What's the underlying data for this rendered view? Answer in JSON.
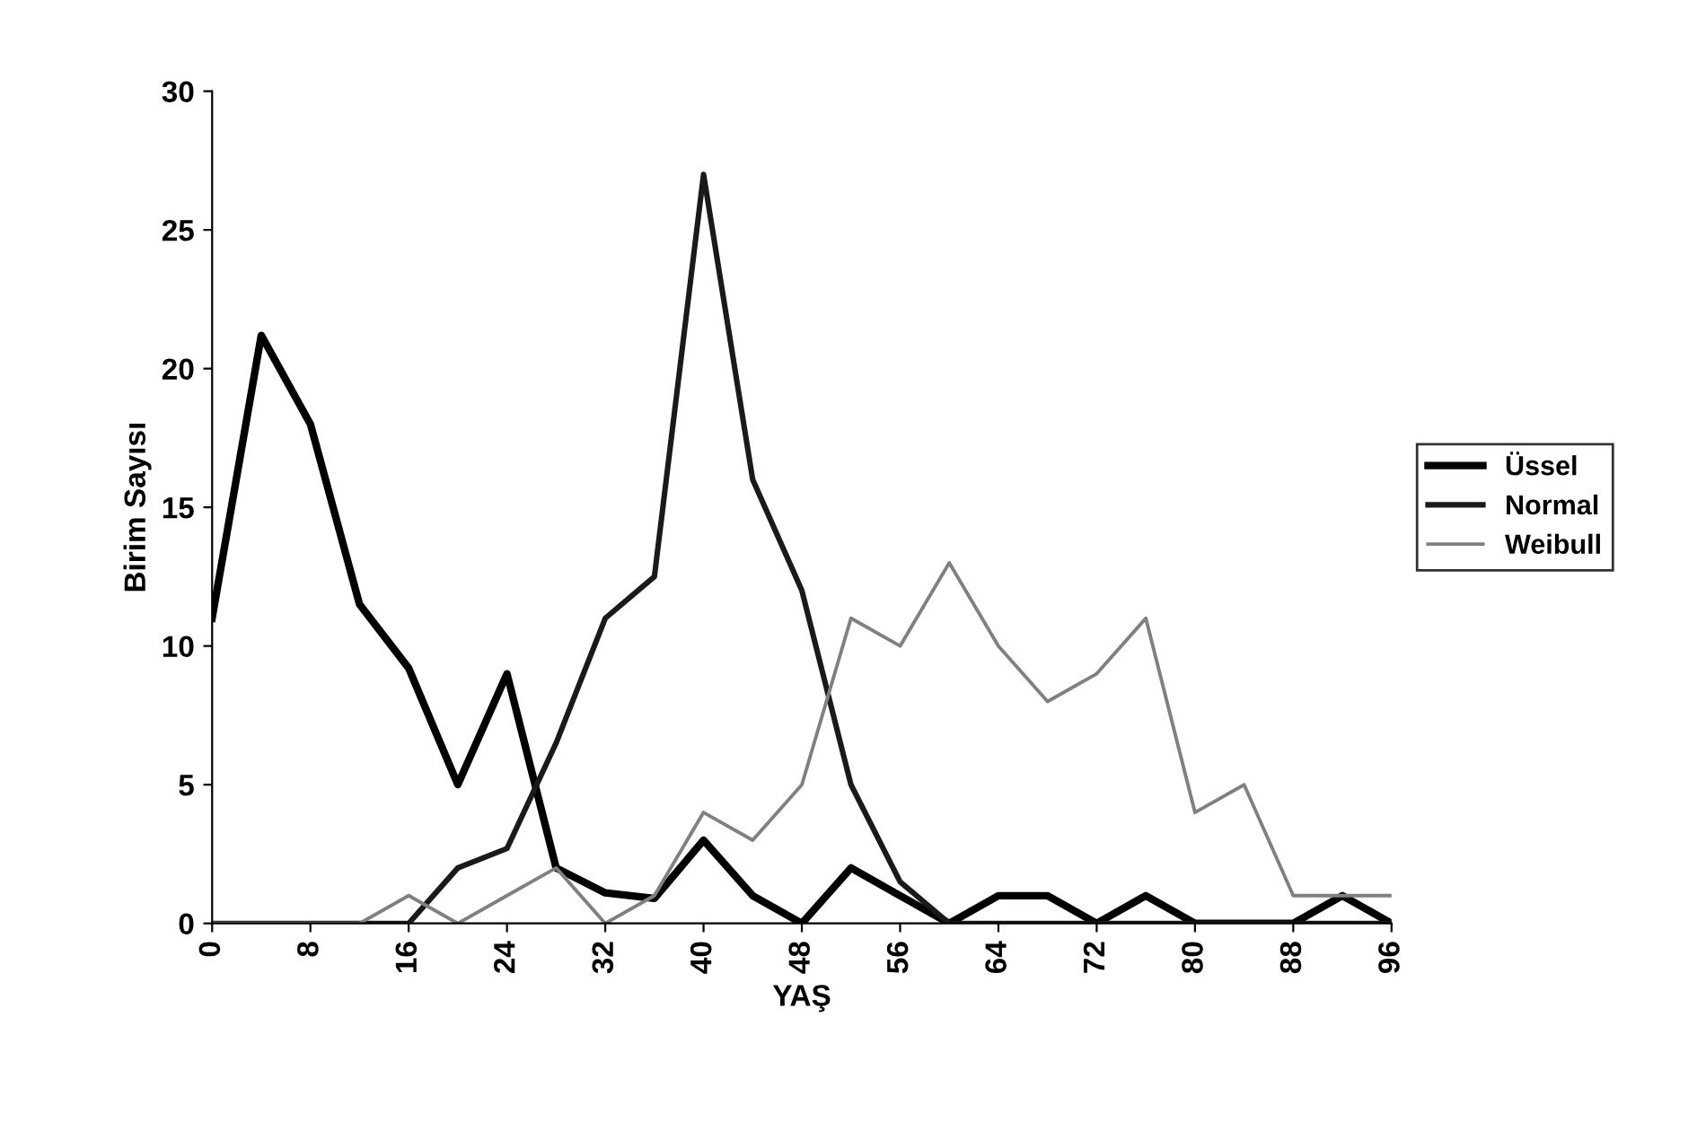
{
  "chart_data": {
    "type": "line",
    "xlabel": "YAŞ",
    "ylabel": "Birim Sayısı",
    "x": [
      0,
      4,
      8,
      12,
      16,
      20,
      24,
      28,
      32,
      36,
      40,
      44,
      48,
      52,
      56,
      60,
      64,
      68,
      72,
      76,
      80,
      84,
      88,
      92,
      96
    ],
    "series": [
      {
        "name": "Üssel",
        "color": "#000000",
        "values": [
          11,
          21.2,
          18,
          11.5,
          9.2,
          5,
          9,
          2,
          1.1,
          0.9,
          3,
          1,
          0,
          2,
          1,
          0,
          1,
          1,
          0,
          1,
          0,
          0,
          0,
          1,
          0
        ]
      },
      {
        "name": "Normal",
        "color": "#1a1a1a",
        "values": [
          0,
          0,
          0,
          0,
          0,
          2,
          2.7,
          6.5,
          11,
          12.5,
          27,
          16,
          12,
          5,
          1.5,
          0,
          0,
          0,
          0,
          0,
          0,
          0,
          0,
          0,
          0
        ]
      },
      {
        "name": "Weibull",
        "color": "#808080",
        "values": [
          0,
          0,
          0,
          0,
          1,
          0,
          1,
          2,
          0,
          1,
          4,
          3,
          5,
          11,
          10,
          13,
          10,
          8,
          9,
          11,
          4,
          5,
          1,
          1,
          1
        ]
      }
    ],
    "xlim": [
      0,
      96
    ],
    "xticks": [
      0,
      8,
      16,
      24,
      32,
      40,
      48,
      56,
      64,
      72,
      80,
      88,
      96
    ],
    "ylim": [
      0,
      30
    ],
    "yticks": [
      0,
      5,
      10,
      15,
      20,
      25,
      30
    ],
    "grid": false,
    "legend": "right",
    "marker": "none",
    "line_style": "solid"
  }
}
